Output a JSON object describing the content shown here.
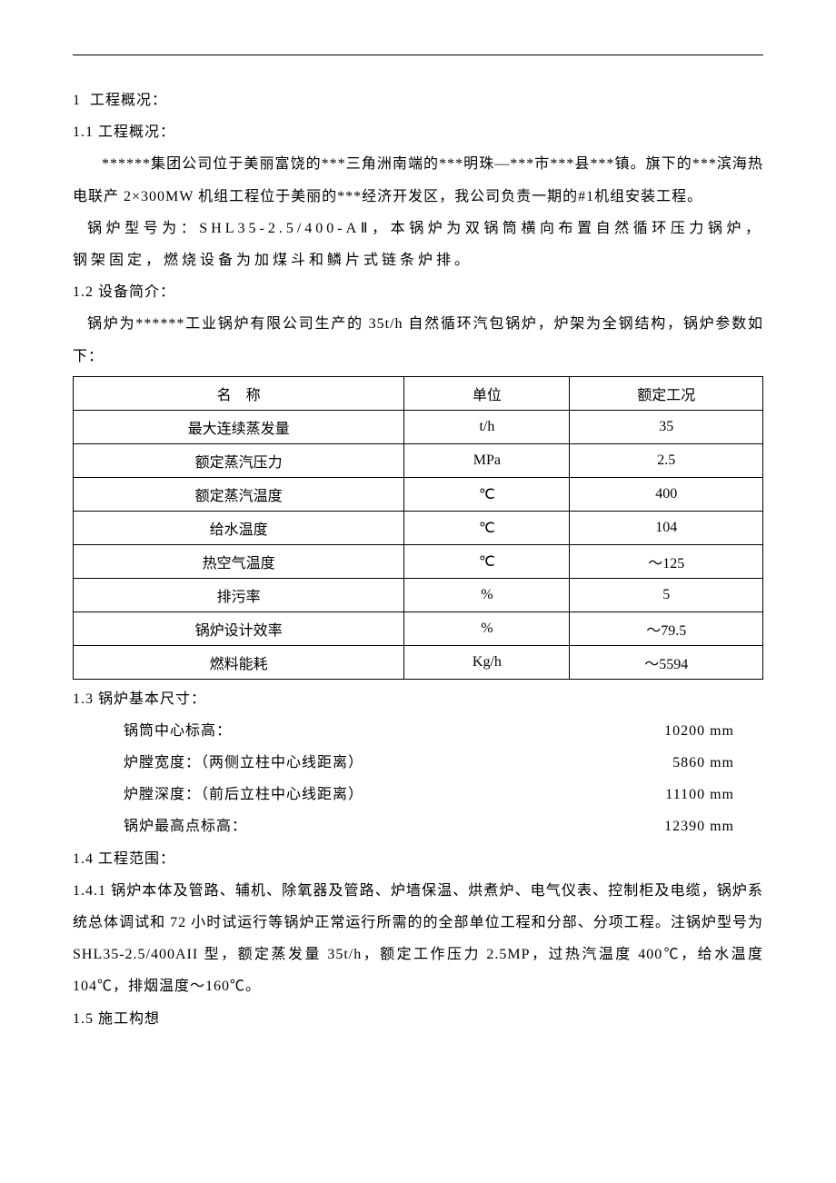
{
  "sections": {
    "s1": {
      "num": "1",
      "title": "工程概况："
    },
    "s1_1": {
      "num": "1.1",
      "title": "工程概况："
    },
    "s1_2": {
      "num": "1.2",
      "title": "设备简介："
    },
    "s1_3": {
      "num": "1.3",
      "title": "锅炉基本尺寸："
    },
    "s1_4": {
      "num": "1.4",
      "title": "工程范围："
    },
    "s1_4_1": {
      "num": "1.4.1"
    },
    "s1_5": {
      "num": "1.5",
      "title": "施工构想"
    }
  },
  "paragraphs": {
    "p1": "******集团公司位于美丽富饶的***三角洲南端的***明珠—***市***县***镇。旗下的***滨海热电联产 2×300MW 机组工程位于美丽的***经济开发区，我公司负责一期的#1机组安装工程。",
    "p2": "锅炉型号为：SHL35-2.5/400-AⅡ，本锅炉为双锅筒横向布置自然循环压力锅炉，钢架固定，燃烧设备为加煤斗和鳞片式链条炉排。",
    "p3": "锅炉为******工业锅炉有限公司生产的 35t/h 自然循环汽包锅炉，炉架为全钢结构，锅炉参数如下：",
    "p4": "锅炉本体及管路、辅机、除氧器及管路、炉墙保温、烘煮炉、电气仪表、控制柜及电缆，锅炉系统总体调试和 72 小时试运行等锅炉正常运行所需的的全部单位工程和分部、分项工程。注锅炉型号为 SHL35-2.5/400AII 型，额定蒸发量 35t/h，额定工作压力 2.5MP，过热汽温度 400℃，给水温度 104℃，排烟温度～160℃。"
  },
  "table": {
    "header": {
      "name_a": "名",
      "name_b": "称",
      "unit": "单位",
      "cond": "额定工况"
    },
    "rows": [
      {
        "name": "最大连续蒸发量",
        "unit": "t/h",
        "value": "35"
      },
      {
        "name": "额定蒸汽压力",
        "unit": "MPa",
        "value": "2.5"
      },
      {
        "name": "额定蒸汽温度",
        "unit": "℃",
        "value": "400"
      },
      {
        "name": "给水温度",
        "unit": "℃",
        "value": "104"
      },
      {
        "name": "热空气温度",
        "unit": "℃",
        "value": "～125"
      },
      {
        "name": "排污率",
        "unit": "%",
        "value": "5"
      },
      {
        "name": "锅炉设计效率",
        "unit": "%",
        "value": "～79.5"
      },
      {
        "name": "燃料能耗",
        "unit": "Kg/h",
        "value": "～5594"
      }
    ]
  },
  "dims": [
    {
      "label": "锅筒中心标高：",
      "value": "10200 mm"
    },
    {
      "label": "炉膛宽度：（两侧立柱中心线距离）",
      "value": "5860 mm"
    },
    {
      "label": "炉膛深度：（前后立柱中心线距离）",
      "value": "11100 mm"
    },
    {
      "label": "锅炉最高点标高：",
      "value": "12390 mm"
    }
  ]
}
